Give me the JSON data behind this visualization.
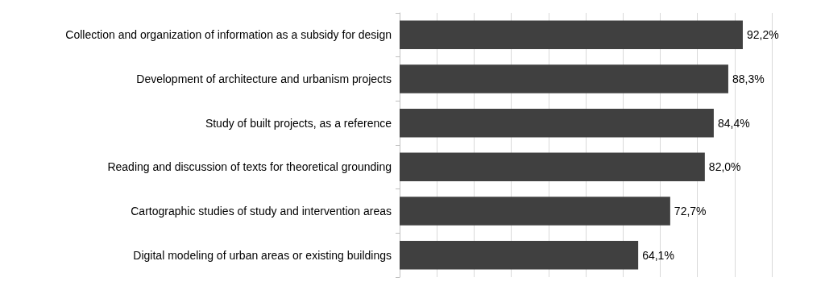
{
  "chart_data": {
    "type": "bar",
    "orientation": "horizontal",
    "categories": [
      "Collection and organization of information as a subsidy for design",
      "Development of architecture and urbanism projects",
      "Study of built projects, as a reference",
      "Reading and discussion of texts for theoretical grounding",
      "Cartographic studies of study and intervention areas",
      "Digital modeling of urban areas or existing buildings"
    ],
    "values": [
      92.2,
      88.3,
      84.4,
      82.0,
      72.7,
      64.1
    ],
    "value_labels": [
      "92,2%",
      "88,3%",
      "84,4%",
      "82,0%",
      "72,7%",
      "64,1%"
    ],
    "color": "#404040",
    "xlim": [
      0,
      100
    ],
    "xticks": [
      {
        "value": 0,
        "label": null
      },
      {
        "value": 10,
        "label": null
      },
      {
        "value": 20,
        "label": null
      },
      {
        "value": 30,
        "label": null
      },
      {
        "value": 40,
        "label": null
      },
      {
        "value": 50,
        "label": null
      },
      {
        "value": 60,
        "label": null
      },
      {
        "value": 70,
        "label": null
      },
      {
        "value": 80,
        "label": null
      },
      {
        "value": 90,
        "label": null
      },
      {
        "value": 100,
        "label": null
      }
    ],
    "grid": "x",
    "tick_labels": "y"
  }
}
